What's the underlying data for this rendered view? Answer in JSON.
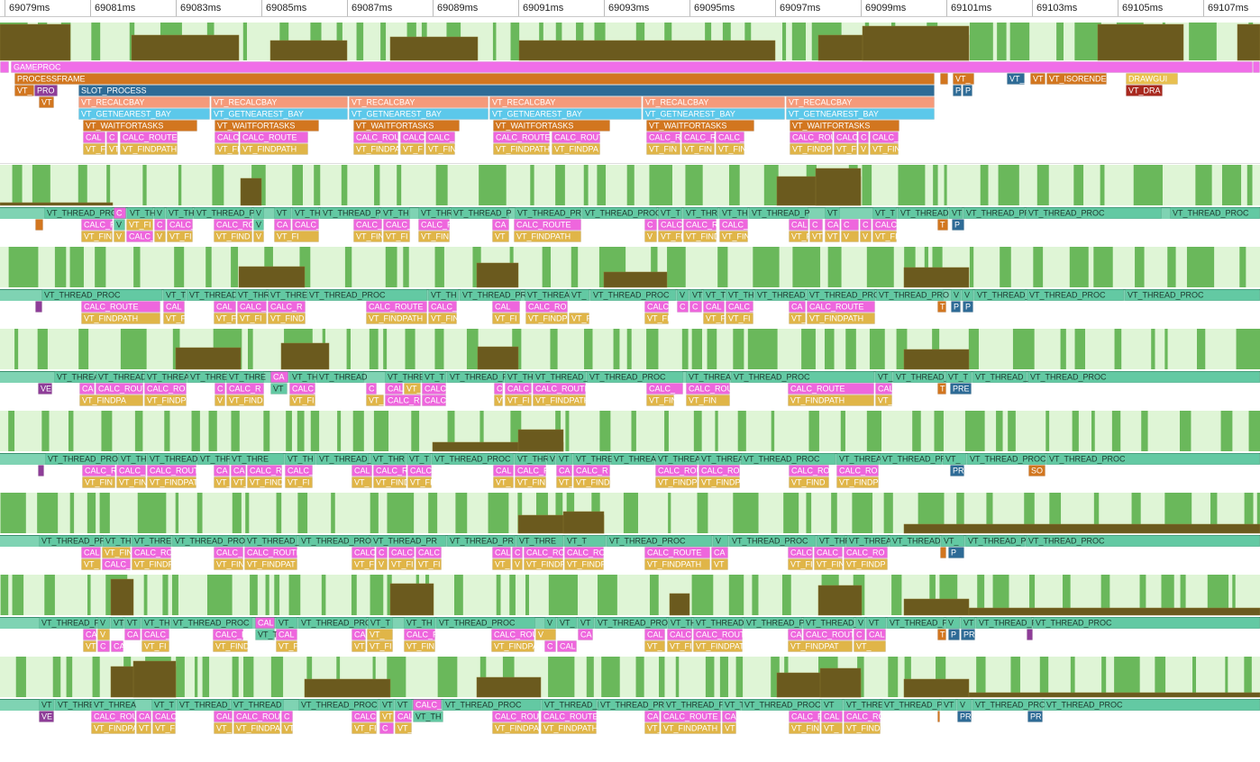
{
  "ruler": {
    "ticks": [
      "69079ms",
      "69081ms",
      "69083ms",
      "69085ms",
      "69087ms",
      "69089ms",
      "69091ms",
      "69093ms",
      "69095ms",
      "69097ms",
      "69099ms",
      "69101ms",
      "69103ms",
      "69105ms",
      "69107ms"
    ]
  },
  "main": {
    "rows": [
      [
        "GAMEPROC"
      ],
      [
        "PROCESSFRAME",
        "VT_",
        "VT_",
        "VT",
        "VT_ISORENDER",
        "DRAWGUI"
      ],
      [
        "VT_",
        "PRO",
        "SLOT_PROCESS",
        "P",
        "P",
        "VT_DRA"
      ],
      [
        "VT",
        "VT_RECALCBAY",
        "VT_RECALCBAY",
        "VT_RECALCBAY",
        "VT_RECALCBAY",
        "VT_RECALCBAY",
        "VT_RECALCBAY"
      ],
      [
        "VT_GETNEAREST_BAY",
        "VT_GETNEAREST_BAY",
        "VT_GETNEAREST_BAY",
        "VT_GETNEAREST_BAY",
        "VT_GETNEAREST_BAY",
        "VT_GETNEAREST_BAY"
      ],
      [
        "VT_WAITFORTASKS",
        "VT_WAITFORTASKS",
        "VT_WAITFORTASKS",
        "VT_WAITFORTASKS",
        "VT_WAITFORTASKS",
        "VT_WAITFORTASKS"
      ],
      [
        "CAL",
        "C",
        "CALC_ROUTE",
        "CALC",
        "CALC_ROUTE",
        "CALC_ROU",
        "CALC",
        "CALC_",
        "CALC_ROUTE",
        "CALC_ROUT",
        "CALC_R",
        "CALC_R",
        "CALC_",
        "CALC_ROU",
        "CALC",
        "C",
        "CALC_"
      ],
      [
        "VT_F",
        "VT",
        "VT_FINDPATH",
        "VT_FI",
        "VT_FINDPATH",
        "VT_FINDPA",
        "VT_F",
        "VT_FIN",
        "VT_FINDPATH",
        "VT_FINDPA",
        "VT_FIN",
        "VT_FIN",
        "VT_FIN",
        "VT_FINDP",
        "VT_FI",
        "V",
        "VT_FIN"
      ]
    ]
  },
  "lanes": [
    {
      "rows": [
        [
          "VT_THREAD_PRO",
          "C",
          "VT_TH",
          "V",
          "VT_TH",
          "VT_THREAD_P",
          "V",
          "VT",
          "VT_TH",
          "VT_THREAD_PR",
          "VT_TH",
          "VT_THR",
          "VT_THREAD_P",
          "VT_THREAD_PR",
          "VT_THREAD_PROC",
          "VT_T",
          "VT_THR",
          "VT_TH",
          "VT_THREAD_P",
          "VT",
          "VT_T",
          "VT_THREAD",
          "VT",
          "VT_THREAD_PR",
          "VT_THREAD_PROC",
          "VT_THREAD_PROC"
        ],
        [
          "CALC_R",
          "V",
          "VT_FI",
          "C",
          "CALC_",
          "CALC_RO",
          "V",
          "CA",
          "CALC_",
          "CALC_",
          "CALC_",
          "CALC_R",
          "CA",
          "CALC_ROUTE",
          "C",
          "CALC",
          "CALC_R",
          "CALC_",
          "CAL",
          "C",
          "CA",
          "C",
          "C",
          "CALC",
          "T",
          "P"
        ],
        [
          "VT_FIN",
          "V",
          "CALC_",
          "V",
          "VT_FI",
          "VT_FIND",
          "V",
          "VT_FI",
          "VT_FIN",
          "VT_FI",
          "VT_FIN",
          "VT",
          "VT_FINDPATH",
          "V",
          "VT_FI",
          "VT_FIND",
          "VT_FIN",
          "VT_F",
          "VT",
          "VT",
          "V",
          "V",
          "VT_FI"
        ]
      ]
    },
    {
      "rows": [
        [
          "VT_THREAD_PROC",
          "VT_T",
          "VT_THREAD",
          "VT_THR",
          "VT_THRE",
          "VT_THREAD_PROC",
          "VT_TH",
          "VT_THREAD_PR",
          "VT_THREA",
          "VT_",
          "VT_THREAD_PROC",
          "V",
          "VT",
          "VT_T",
          "VT_TH",
          "VT_THREAD_",
          "VT_THREAD_PRO",
          "VT_THREAD_PRO",
          "V",
          "V",
          "VT_THREAD_",
          "VT_THREAD_PROC",
          "VT_THREAD_PROC"
        ],
        [
          "CALC_ROUTE",
          "CAL",
          "CAL",
          "CALC_R",
          "CALC_R",
          "CALC_ROUTE",
          "CALC_",
          "CAL",
          "CALC_RO",
          "CALC",
          "C",
          "C",
          "CAL",
          "CALC_",
          "CA",
          "CALC_ROUTE",
          "T",
          "P",
          "P"
        ],
        [
          "VT_FINDPATH",
          "VT_F",
          "VT_FI",
          "VT_FI",
          "VT_FIND",
          "VT_FINDPATH",
          "VT_FIN",
          "VT_FI",
          "VT_FINDP",
          "VT_F",
          "VT_FI",
          "VT_FI",
          "VT_FI",
          "VT_",
          "VT_FINDPATH"
        ]
      ]
    },
    {
      "rows": [
        [
          "VT_THREA",
          "VT_THREAD",
          "VT_THREA",
          "VT_THRE",
          "VT_THRE",
          "CA",
          "VT_TH",
          "VT_THREAD",
          "VT_THRE",
          "VT_T",
          "VT_THREAD_P",
          "VT_TH",
          "VT_THREAD_",
          "VT_THREAD_PROC",
          "VT_THREA",
          "VT_THREAD_PROC",
          "VT_",
          "VT_THREAD_",
          "VT_T",
          "VT_THREAD_P",
          "VT_THREAD_PROC"
        ],
        [
          "VE",
          "CA",
          "CALC_ROUT",
          "CALC_RO",
          "C",
          "CALC_R",
          "VT",
          "CALC_",
          "C",
          "CAL",
          "VT_FIND",
          "CALC",
          "C",
          "CALC_",
          "CALC_ROUTE",
          "CALC_",
          "CALC_ROU",
          "CALC_ROUTE",
          "CAL",
          "T",
          "PRE"
        ],
        [
          "VT_FINDPA",
          "VT_FINDP",
          "V",
          "VT_FIND",
          "VT_FI",
          "VT_",
          "CALC_R",
          "CALC_",
          "VT",
          "VT_FI",
          "VT_FINDPATH",
          "VT_FIN",
          "VT_FIN",
          "VT_FINDPATH",
          "VT_"
        ]
      ]
    },
    {
      "rows": [
        [
          "VT_THREAD_PROC",
          "VT_TH",
          "VT_THREAD",
          "VT_THR",
          "VT_THRE",
          "VT_TH",
          "VT_THREAD_P",
          "VT_THR",
          "VT_T",
          "VT_THREAD_PROC",
          "VT_THR",
          "V",
          "VT",
          "VT_THRE",
          "VT_THREA",
          "VT_THREA",
          "VT_THREA",
          "VT_THREAD_PROC",
          "VT_THREA",
          "VT_THREAD_PR",
          "VT_",
          "VT_THREAD_PROC",
          "VT_THREAD_PROC"
        ],
        [
          "CALC_R",
          "CALC_",
          "CALC_ROUT",
          "CA",
          "CA",
          "CALC_R",
          "CALC_",
          "CAL",
          "CALC_R",
          "CALC",
          "CAL",
          "CALC_R",
          "CA",
          "CALC_R",
          "CALC_ROU",
          "CALC_RO",
          "CALC_RO",
          "CALC_RO",
          "PR",
          "SO"
        ],
        [
          "VT_FIN",
          "VT_FIN",
          "VT_FINDPAT",
          "VT_",
          "VT_",
          "VT_FIND",
          "VT_FI",
          "VT_",
          "VT_FIND",
          "VT_FI",
          "VT_",
          "VT_FIN",
          "VT_",
          "VT_FIND",
          "VT_FINDP",
          "VT_FINDP",
          "VT_FIND",
          "VT_FINDP"
        ]
      ]
    },
    {
      "rows": [
        [
          "VT_THREAD_PR",
          "VT_TH",
          "VT_THRE",
          "VT_THREAD_PROC",
          "VT_THREAD_",
          "VT_THREAD_PROC",
          "VT_THREAD_PR",
          "VT_THREAD_PR",
          "VT_THRE",
          "VT_T",
          "VT_THREAD_PROC",
          "V",
          "VT_THREAD_PROC",
          "VT_THR",
          "VT_THREA",
          "VT_THREAD",
          "VT_",
          "VT_THREAD_P",
          "VT_THREAD_PROC"
        ],
        [
          "CAL",
          "VT_FIN",
          "CALC_RO",
          "CALC_",
          "CALC_ROUTE",
          "CALC",
          "C",
          "CALC_",
          "CALC",
          "CALC",
          "C",
          "CALC_RO",
          "CALC_RO",
          "CALC_ROUTE",
          "CA",
          "CALC",
          "CALC_",
          "CALC_RO",
          "P"
        ],
        [
          "VT_",
          "CALC_",
          "VT_FINDP",
          "VT_FIN",
          "VT_FINDPAT",
          "VT_FI",
          "V",
          "VT_FI",
          "VT_FI",
          "VT_",
          "V",
          "VT_FINDP",
          "VT_FINDP",
          "VT_FINDPATH",
          "VT",
          "VT_FI",
          "VT_FIN",
          "VT_FINDP"
        ]
      ]
    },
    {
      "rows": [
        [
          "VT_THREAD_P",
          "V",
          "VT",
          "VT",
          "VT_TH",
          "VT_THREAD_PROC",
          "CAL",
          "VT_",
          "VT_THREAD_PRO",
          "VT_T",
          "VT_TH",
          "VT_THREAD_PROC",
          "V",
          "VT_",
          "VT",
          "VT_THREAD_PRO",
          "VT_TH",
          "VT_THREAD",
          "VT_THREAD_P",
          "VT_THREAD_",
          "V",
          "VT",
          "VT_THREAD_P",
          "V",
          "VT",
          "VT_THREAD_P",
          "VT_THREAD_PROC"
        ],
        [
          "CA",
          "V",
          "CA",
          "CALC_",
          "CALC_R",
          "VT_T",
          "CAL",
          "CA",
          "VT_",
          "CALC_R",
          "CALC_ROU",
          "V",
          "CA",
          "CAL",
          "CALC_",
          "CALC_ROUT",
          "CA",
          "CALC_ROUT",
          "C",
          "CAL",
          "T",
          "P",
          "PR"
        ],
        [
          "VT",
          "C",
          "CAL",
          "VT_FI",
          "VT_FIND",
          "VT_FI",
          "VT_",
          "VT_FI",
          "VT_FIN",
          "VT_FINDPA",
          "C",
          "CAL",
          "VT_",
          "VT_FI",
          "VT_FINDPAT",
          "VT_FINDPAT",
          "VT_"
        ]
      ]
    },
    {
      "rows": [
        [
          "VT",
          "VT_THRE",
          "VT_THREA",
          "VT_T",
          "VT_THREAD_",
          "VT_THREAD",
          "VT_THREAD_PROC",
          "VT",
          "VT",
          "CALC_",
          "VT_THREAD_PROC",
          "VT_THREAD_P",
          "VT_THREAD_PR",
          "VT_THREAD_PR",
          "VT_T",
          "VT_THREAD_PROC",
          "VT",
          "VT_THRE",
          "VT_THREAD_P",
          "VT",
          "V",
          "VT_THREAD_PROC",
          "VT_THREAD_PROC"
        ],
        [
          "VE",
          "CALC_ROU",
          "CA",
          "CALC",
          "CAL",
          "CALC_ROU",
          "C",
          "CALC",
          "VT",
          "CAL",
          "VT_TH",
          "CALC_ROU",
          "CALC_ROUTE",
          "CA",
          "CALC_ROUTE",
          "CA",
          "CALC_R",
          "CAL",
          "CALC_RO",
          "PR",
          "PR"
        ],
        [
          "VT_FINDPA",
          "VT",
          "VT_FI",
          "VT_",
          "VT_FINDPA",
          "VT",
          "VT_FI",
          "C",
          "VT_",
          "VT_FINDPA",
          "VT_FINDPATH",
          "VT_",
          "VT_FINDPATH",
          "VT",
          "VT_FIN",
          "VT_",
          "VT_FINDP"
        ]
      ]
    }
  ]
}
